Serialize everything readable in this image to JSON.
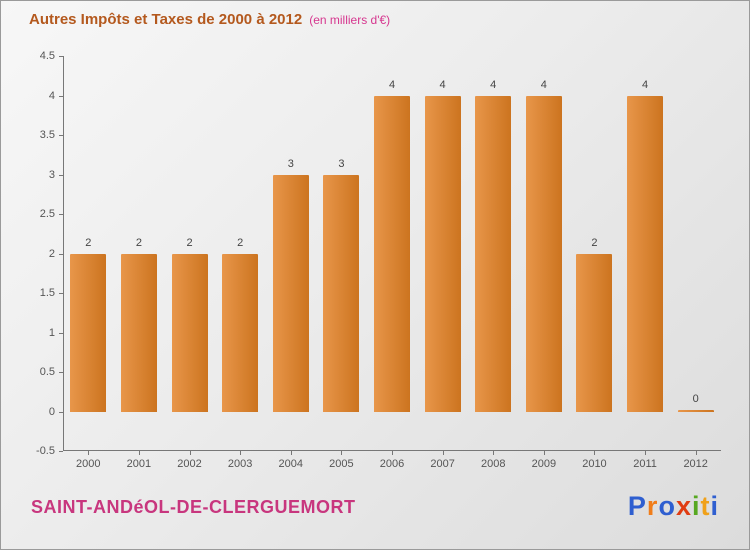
{
  "chart": {
    "title": "Autres Impôts et Taxes de 2000 à 2012",
    "subtitle": "(en milliers d'€)"
  },
  "chart_data": {
    "type": "bar",
    "title": "Autres Impôts et Taxes de 2000 à 2012",
    "subtitle": "(en milliers d'€)",
    "categories": [
      "2000",
      "2001",
      "2002",
      "2003",
      "2004",
      "2005",
      "2006",
      "2007",
      "2008",
      "2009",
      "2010",
      "2011",
      "2012"
    ],
    "values": [
      2,
      2,
      2,
      2,
      3,
      3,
      4,
      4,
      4,
      4,
      2,
      4,
      0
    ],
    "xlabel": "",
    "ylabel": "",
    "ylim": [
      -0.5,
      4.5
    ],
    "ytick_step": 0.5,
    "grid": false,
    "legend": false
  },
  "footer": {
    "town": "SAINT-ANDéOL-DE-CLERGUEMORT",
    "logo_letters": [
      {
        "ch": "P",
        "color": "#2F5FD0"
      },
      {
        "ch": "r",
        "color": "#F07D1A"
      },
      {
        "ch": "o",
        "color": "#2F5FD0"
      },
      {
        "ch": "x",
        "color": "#E03C12"
      },
      {
        "ch": "i",
        "color": "#57A821"
      },
      {
        "ch": "t",
        "color": "#F0A11A"
      },
      {
        "ch": "i",
        "color": "#2F5FD0"
      }
    ]
  },
  "colors": {
    "title": "#B4591E",
    "subtitle": "#D6368F",
    "town": "#C8367E",
    "bar_gradient_start": "#E8964A",
    "bar_gradient_end": "#CC741F",
    "axis": "#777777",
    "tick_label": "#555555",
    "value_label": "#444444"
  }
}
